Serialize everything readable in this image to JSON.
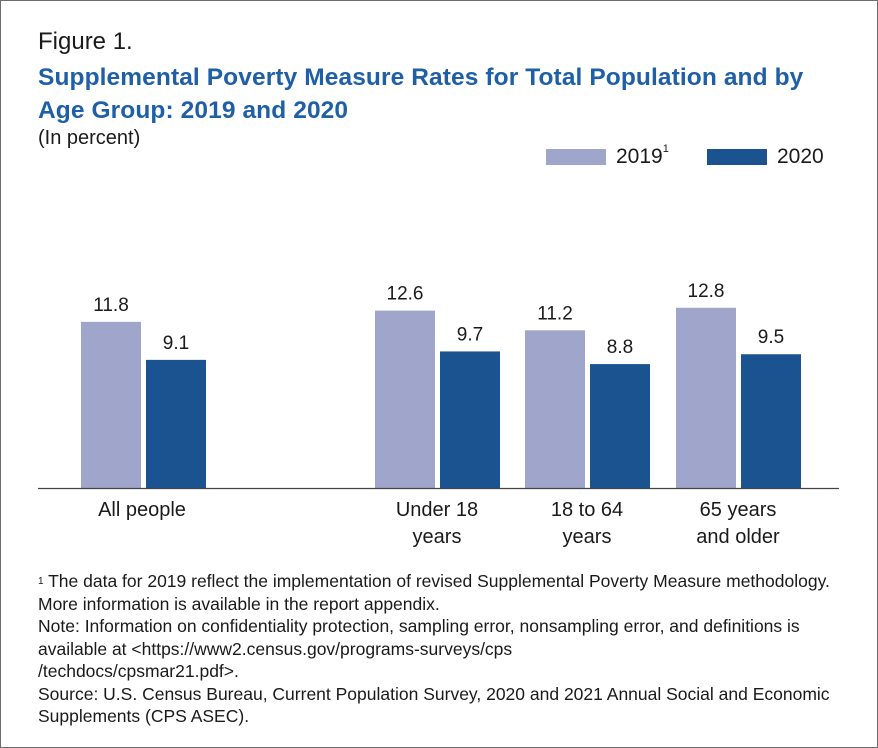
{
  "figure_label": "Figure 1.",
  "title": "Supplemental Poverty Measure Rates for Total Population and by Age Group: 2019 and 2020",
  "subtitle": "(In percent)",
  "legend": [
    {
      "label": "2019",
      "superscript": "1",
      "color": "#a0a5cb"
    },
    {
      "label": "2020",
      "superscript": "",
      "color": "#1b5290"
    }
  ],
  "chart_data": {
    "type": "bar",
    "categories": [
      [
        "All people"
      ],
      [
        "Under 18",
        "years"
      ],
      [
        "18 to 64",
        "years"
      ],
      [
        "65 years",
        "and older"
      ]
    ],
    "series": [
      {
        "name": "2019",
        "color": "#a0a5cb",
        "values": [
          11.8,
          12.6,
          11.2,
          12.8
        ]
      },
      {
        "name": "2020",
        "color": "#1b5290",
        "values": [
          9.1,
          9.7,
          8.8,
          9.5
        ]
      }
    ],
    "ylim": [
      0,
      18.2
    ],
    "grid": false,
    "legend_position": "top-right"
  },
  "notes": {
    "footnote_mark": "1",
    "footnote": "The data for 2019 reflect the implementation of revised Supplemental Poverty Measure methodology. More information is available in the report appendix.",
    "note": "Note: Information on confidentiality protection, sampling error, nonsampling error, and definitions is available at <https://www2.census.gov/programs-surveys/cps",
    "note_cont": "/techdocs/cpsmar21.pdf>.",
    "source": "Source: U.S. Census Bureau, Current Population Survey, 2020 and 2021 Annual Social and Economic Supplements (CPS ASEC)."
  }
}
